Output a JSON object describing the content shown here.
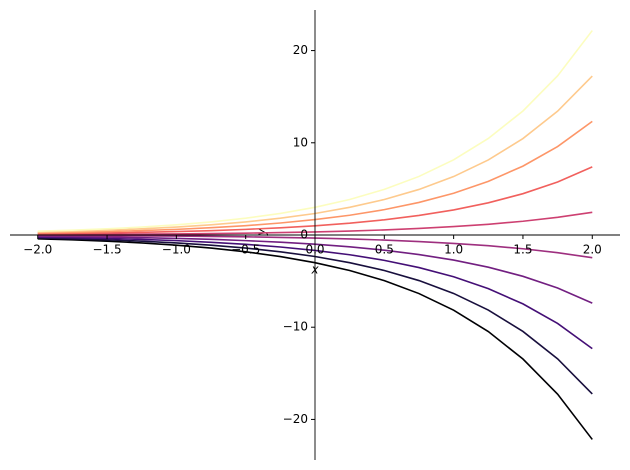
{
  "chart_data": {
    "type": "line",
    "xlabel": "x",
    "ylabel": "y",
    "x": [
      -2,
      -1.75,
      -1.5,
      -1.25,
      -1,
      -0.75,
      -0.5,
      -0.25,
      0,
      0.25,
      0.5,
      0.75,
      1,
      1.25,
      1.5,
      1.75,
      2
    ],
    "series": [
      {
        "color": "#000004",
        "values": [
          -0.41,
          -0.52,
          -0.67,
          -0.86,
          -1.1,
          -1.42,
          -1.82,
          -2.34,
          -3.0,
          -3.85,
          -4.95,
          -6.35,
          -8.15,
          -10.47,
          -13.45,
          -17.26,
          -22.17
        ]
      },
      {
        "color": "#180f3d",
        "values": [
          -0.32,
          -0.41,
          -0.52,
          -0.67,
          -0.86,
          -1.1,
          -1.42,
          -1.82,
          -2.33,
          -3.0,
          -3.85,
          -4.94,
          -6.34,
          -8.14,
          -10.46,
          -13.43,
          -17.24
        ]
      },
      {
        "color": "#440f76",
        "values": [
          -0.23,
          -0.29,
          -0.37,
          -0.48,
          -0.61,
          -0.79,
          -1.01,
          -1.3,
          -1.67,
          -2.14,
          -2.75,
          -3.53,
          -4.53,
          -5.82,
          -7.47,
          -9.59,
          -12.32
        ]
      },
      {
        "color": "#721f81",
        "values": [
          -0.14,
          -0.17,
          -0.22,
          -0.29,
          -0.37,
          -0.47,
          -0.61,
          -0.78,
          -1.0,
          -1.28,
          -1.65,
          -2.12,
          -2.72,
          -3.49,
          -4.48,
          -5.75,
          -7.39
        ]
      },
      {
        "color": "#9e2f7f",
        "values": [
          -0.05,
          -0.06,
          -0.07,
          -0.1,
          -0.12,
          -0.16,
          -0.2,
          -0.26,
          -0.33,
          -0.43,
          -0.55,
          -0.71,
          -0.91,
          -1.16,
          -1.49,
          -1.92,
          -2.46
        ]
      },
      {
        "color": "#cd4071",
        "values": [
          0.05,
          0.06,
          0.07,
          0.1,
          0.12,
          0.16,
          0.2,
          0.26,
          0.33,
          0.43,
          0.55,
          0.71,
          0.91,
          1.16,
          1.49,
          1.92,
          2.46
        ]
      },
      {
        "color": "#f1605d",
        "values": [
          0.14,
          0.17,
          0.22,
          0.29,
          0.37,
          0.47,
          0.61,
          0.78,
          1.0,
          1.28,
          1.65,
          2.12,
          2.72,
          3.49,
          4.48,
          5.75,
          7.39
        ]
      },
      {
        "color": "#fd9668",
        "values": [
          0.23,
          0.29,
          0.37,
          0.48,
          0.61,
          0.79,
          1.01,
          1.3,
          1.67,
          2.14,
          2.75,
          3.53,
          4.53,
          5.82,
          7.47,
          9.59,
          12.32
        ]
      },
      {
        "color": "#feca8d",
        "values": [
          0.32,
          0.41,
          0.52,
          0.67,
          0.86,
          1.1,
          1.42,
          1.82,
          2.33,
          3.0,
          3.85,
          4.94,
          6.34,
          8.14,
          10.46,
          13.43,
          17.24
        ]
      },
      {
        "color": "#fcfdbf",
        "values": [
          0.41,
          0.52,
          0.67,
          0.86,
          1.1,
          1.42,
          1.82,
          2.34,
          3.0,
          3.85,
          4.95,
          6.35,
          8.15,
          10.47,
          13.45,
          17.26,
          22.17
        ]
      }
    ],
    "xlim": [
      -2.2,
      2.2
    ],
    "ylim": [
      -24.4,
      24.4
    ],
    "xticks": [
      {
        "value": -2,
        "label": "−2.0"
      },
      {
        "value": -1.5,
        "label": "−1.5"
      },
      {
        "value": -1,
        "label": "−1.0"
      },
      {
        "value": -0.5,
        "label": "−0.5"
      },
      {
        "value": 0,
        "label": "0.0"
      },
      {
        "value": 0.5,
        "label": "0.5"
      },
      {
        "value": 1,
        "label": "1.0"
      },
      {
        "value": 1.5,
        "label": "1.5"
      },
      {
        "value": 2,
        "label": "2.0"
      }
    ],
    "yticks": [
      {
        "value": -20,
        "label": "−20"
      },
      {
        "value": -10,
        "label": "−10"
      },
      0,
      10,
      20
    ]
  }
}
